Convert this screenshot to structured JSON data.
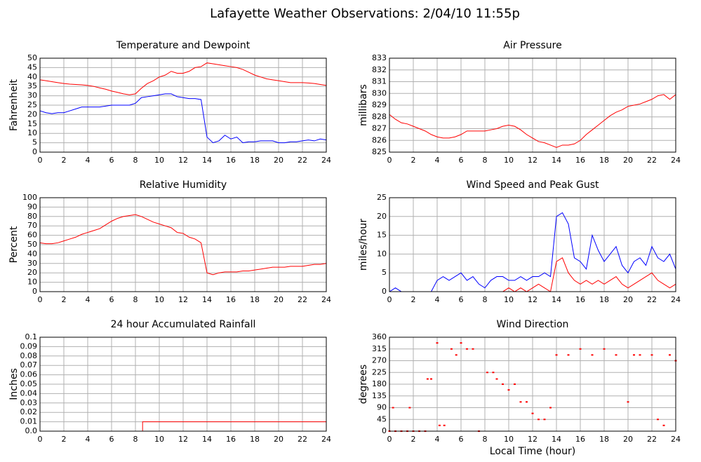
{
  "title": "Lafayette Weather Observations: 2/04/10 11:55p",
  "chart_data": [
    {
      "type": "line",
      "title": "Temperature and Dewpoint",
      "ylabel": "Fahrenheit",
      "x": [
        0,
        0.5,
        1,
        1.5,
        2,
        2.5,
        3,
        3.5,
        4,
        4.5,
        5,
        5.5,
        6,
        6.5,
        7,
        7.5,
        8,
        8.5,
        9,
        9.5,
        10,
        10.5,
        11,
        11.5,
        12,
        12.5,
        13,
        13.5,
        14,
        14.5,
        15,
        15.5,
        16,
        16.5,
        17,
        17.5,
        18,
        18.5,
        19,
        19.5,
        20,
        20.5,
        21,
        21.5,
        22,
        22.5,
        23,
        23.5,
        24
      ],
      "series": [
        {
          "color": "#ff0000",
          "values": [
            38.5,
            38,
            37.5,
            37,
            36.5,
            36.2,
            36,
            35.8,
            35.5,
            35,
            34.2,
            33.5,
            32.5,
            31.8,
            31,
            30.5,
            31,
            34,
            36.5,
            38,
            40,
            41,
            43,
            42,
            42,
            43,
            45,
            45.5,
            47.5,
            47,
            46.5,
            46,
            45.5,
            45,
            44,
            42.5,
            41,
            40,
            39,
            38.5,
            38,
            37.5,
            37,
            37,
            37,
            36.8,
            36.5,
            36,
            35.5
          ]
        },
        {
          "color": "#0000ff",
          "values": [
            22,
            21,
            20.5,
            21,
            21,
            22,
            23,
            24,
            24,
            24,
            24,
            24.5,
            25,
            25,
            25,
            25,
            26,
            29,
            29.5,
            30,
            30.5,
            31,
            31,
            29.5,
            29,
            28.5,
            28.5,
            28,
            8,
            5,
            6,
            9,
            7,
            8,
            5,
            5.5,
            5.5,
            6,
            6,
            6,
            5,
            5,
            5.5,
            5.5,
            6,
            6.5,
            6,
            7,
            6.5
          ]
        }
      ],
      "xlim": [
        0,
        24
      ],
      "xticks": [
        0,
        2,
        4,
        6,
        8,
        10,
        12,
        14,
        16,
        18,
        20,
        22,
        24
      ],
      "ylim": [
        0,
        50
      ],
      "yticks": [
        0,
        5,
        10,
        15,
        20,
        25,
        30,
        35,
        40,
        45,
        50
      ],
      "grid": true
    },
    {
      "type": "line",
      "title": "Air Pressure",
      "ylabel": "millibars",
      "x": [
        0,
        0.5,
        1,
        1.5,
        2,
        2.5,
        3,
        3.5,
        4,
        4.5,
        5,
        5.5,
        6,
        6.5,
        7,
        7.5,
        8,
        8.5,
        9,
        9.5,
        10,
        10.5,
        11,
        11.5,
        12,
        12.5,
        13,
        13.5,
        14,
        14.5,
        15,
        15.5,
        16,
        16.5,
        17,
        17.5,
        18,
        18.5,
        19,
        19.5,
        20,
        20.5,
        21,
        21.5,
        22,
        22.5,
        23,
        23.5,
        24
      ],
      "series": [
        {
          "color": "#ff0000",
          "values": [
            828.2,
            827.8,
            827.5,
            827.4,
            827.2,
            827,
            826.8,
            826.5,
            826.3,
            826.2,
            826.2,
            826.3,
            826.5,
            826.8,
            826.8,
            826.8,
            826.8,
            826.9,
            827,
            827.2,
            827.3,
            827.2,
            826.9,
            826.5,
            826.2,
            825.9,
            825.8,
            825.6,
            825.4,
            825.6,
            825.6,
            825.7,
            826,
            826.5,
            826.9,
            827.3,
            827.7,
            828.1,
            828.4,
            828.6,
            828.9,
            829,
            829.1,
            829.3,
            829.5,
            829.8,
            829.9,
            829.5,
            829.9
          ]
        }
      ],
      "xlim": [
        0,
        24
      ],
      "xticks": [
        0,
        2,
        4,
        6,
        8,
        10,
        12,
        14,
        16,
        18,
        20,
        22,
        24
      ],
      "ylim": [
        825,
        833
      ],
      "yticks": [
        825,
        826,
        827,
        828,
        829,
        830,
        831,
        832,
        833
      ],
      "grid": true
    },
    {
      "type": "line",
      "title": "Relative Humidity",
      "ylabel": "Percent",
      "x": [
        0,
        0.5,
        1,
        1.5,
        2,
        2.5,
        3,
        3.5,
        4,
        4.5,
        5,
        5.5,
        6,
        6.5,
        7,
        7.5,
        8,
        8.5,
        9,
        9.5,
        10,
        10.5,
        11,
        11.5,
        12,
        12.5,
        13,
        13.5,
        14,
        14.5,
        15,
        15.5,
        16,
        16.5,
        17,
        17.5,
        18,
        18.5,
        19,
        19.5,
        20,
        20.5,
        21,
        21.5,
        22,
        22.5,
        23,
        23.5,
        24
      ],
      "series": [
        {
          "color": "#ff0000",
          "values": [
            52,
            51,
            51,
            52,
            54,
            56,
            58,
            61,
            63,
            65,
            67,
            71,
            75,
            78,
            80,
            81,
            82,
            80,
            77,
            74,
            72,
            70,
            68,
            63,
            62,
            58,
            56,
            52,
            20,
            18,
            20,
            21,
            21,
            21,
            22,
            22,
            23,
            24,
            25,
            26,
            26,
            26,
            27,
            27,
            27,
            28,
            29,
            29,
            30
          ]
        }
      ],
      "xlim": [
        0,
        24
      ],
      "xticks": [
        0,
        2,
        4,
        6,
        8,
        10,
        12,
        14,
        16,
        18,
        20,
        22,
        24
      ],
      "ylim": [
        0,
        100
      ],
      "yticks": [
        0,
        10,
        20,
        30,
        40,
        50,
        60,
        70,
        80,
        90,
        100
      ],
      "grid": true
    },
    {
      "type": "line",
      "title": "Wind Speed and Peak Gust",
      "ylabel": "miles/hour",
      "x": [
        0,
        0.5,
        1,
        1.5,
        2,
        2.5,
        3,
        3.5,
        4,
        4.5,
        5,
        5.5,
        6,
        6.5,
        7,
        7.5,
        8,
        8.5,
        9,
        9.5,
        10,
        10.5,
        11,
        11.5,
        12,
        12.5,
        13,
        13.5,
        14,
        14.5,
        15,
        15.5,
        16,
        16.5,
        17,
        17.5,
        18,
        18.5,
        19,
        19.5,
        20,
        20.5,
        21,
        21.5,
        22,
        22.5,
        23,
        23.5,
        24
      ],
      "series": [
        {
          "color": "#0000ff",
          "values": [
            0,
            1,
            0,
            0,
            0,
            0,
            0,
            0,
            3,
            4,
            3,
            4,
            5,
            3,
            4,
            2,
            1,
            3,
            4,
            4,
            3,
            3,
            4,
            3,
            4,
            4,
            5,
            4,
            20,
            21,
            18,
            9,
            8,
            6,
            15,
            11,
            8,
            10,
            12,
            7,
            5,
            8,
            9,
            7,
            12,
            9,
            8,
            10,
            6
          ]
        },
        {
          "color": "#ff0000",
          "values": [
            0,
            0,
            0,
            0,
            0,
            0,
            0,
            0,
            0,
            0,
            0,
            0,
            0,
            0,
            0,
            0,
            0,
            0,
            0,
            0,
            1,
            0,
            1,
            0,
            1,
            2,
            1,
            0,
            8,
            9,
            5,
            3,
            2,
            3,
            2,
            3,
            2,
            3,
            4,
            2,
            1,
            2,
            3,
            4,
            5,
            3,
            2,
            1,
            2
          ]
        }
      ],
      "xlim": [
        0,
        24
      ],
      "xticks": [
        0,
        2,
        4,
        6,
        8,
        10,
        12,
        14,
        16,
        18,
        20,
        22,
        24
      ],
      "ylim": [
        0,
        25
      ],
      "yticks": [
        0,
        5,
        10,
        15,
        20,
        25
      ],
      "grid": true
    },
    {
      "type": "line",
      "title": "24 hour Accumulated Rainfall",
      "ylabel": "Inches",
      "x": [
        0,
        8.6,
        8.6,
        24
      ],
      "series": [
        {
          "color": "#ff0000",
          "values": [
            0,
            0,
            0.01,
            0.01
          ]
        }
      ],
      "xlim": [
        0,
        24
      ],
      "xticks": [
        0,
        2,
        4,
        6,
        8,
        10,
        12,
        14,
        16,
        18,
        20,
        22,
        24
      ],
      "ylim": [
        0,
        0.1
      ],
      "yticks": [
        {
          "value": 0,
          "label": "0.0"
        },
        0.01,
        0.02,
        0.03,
        0.04,
        0.05,
        0.06,
        0.07,
        0.08,
        0.09,
        0.1
      ],
      "grid": true
    },
    {
      "type": "scatter",
      "title": "Wind Direction",
      "ylabel": "degrees",
      "xlabel": "Local Time (hour)",
      "x": [
        0,
        0.3,
        0.5,
        1,
        1.5,
        1.7,
        2,
        2.5,
        3,
        3.2,
        3.5,
        4,
        4.2,
        4.6,
        5.2,
        5.6,
        6,
        6.5,
        7,
        7.5,
        8.2,
        8.7,
        9,
        9.5,
        10,
        10.5,
        11,
        11.5,
        12,
        12.5,
        13,
        13.5,
        14,
        15,
        16,
        17,
        18,
        19,
        20,
        20.5,
        21,
        22,
        22.5,
        23,
        23.5,
        24
      ],
      "series": [
        {
          "color": "#ff0000",
          "values": [
            0,
            90,
            0,
            0,
            0,
            90,
            0,
            0,
            0,
            200,
            200,
            338,
            22,
            22,
            315,
            292,
            338,
            315,
            315,
            0,
            225,
            225,
            200,
            180,
            158,
            180,
            112,
            112,
            68,
            45,
            45,
            90,
            292,
            292,
            315,
            292,
            315,
            292,
            112,
            292,
            292,
            292,
            45,
            22,
            292,
            270
          ]
        }
      ],
      "xlim": [
        0,
        24
      ],
      "xticks": [
        0,
        2,
        4,
        6,
        8,
        10,
        12,
        14,
        16,
        18,
        20,
        22,
        24
      ],
      "ylim": [
        0,
        360
      ],
      "yticks": [
        0,
        45,
        90,
        135,
        180,
        225,
        270,
        315,
        360
      ],
      "grid": true
    }
  ]
}
